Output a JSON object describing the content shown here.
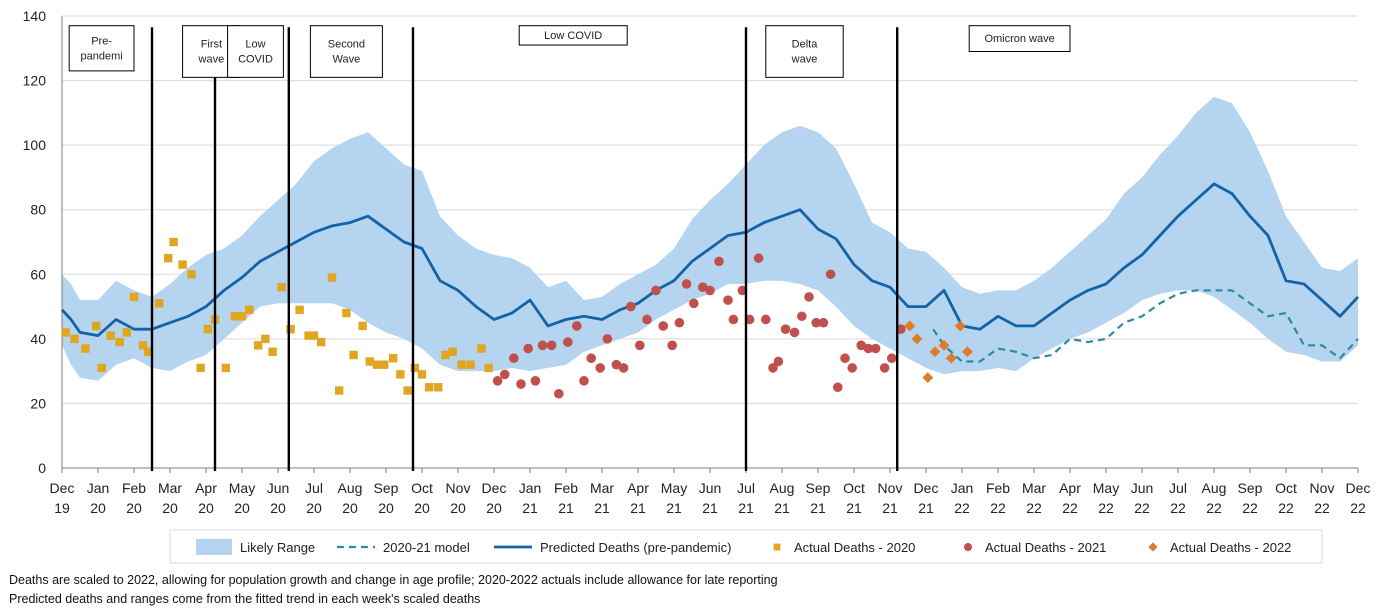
{
  "chart_data": {
    "type": "line",
    "y_axis": {
      "min": 0,
      "max": 140,
      "ticks": [
        0,
        20,
        40,
        60,
        80,
        100,
        120,
        140
      ]
    },
    "x_axis": {
      "min": 0,
      "max": 36,
      "unit": "months since Dec 2019",
      "ticks": [
        {
          "month": "Dec",
          "year": "19"
        },
        {
          "month": "Jan",
          "year": "20"
        },
        {
          "month": "Feb",
          "year": "20"
        },
        {
          "month": "Mar",
          "year": "20"
        },
        {
          "month": "Apr",
          "year": "20"
        },
        {
          "month": "May",
          "year": "20"
        },
        {
          "month": "Jun",
          "year": "20"
        },
        {
          "month": "Jul",
          "year": "20"
        },
        {
          "month": "Aug",
          "year": "20"
        },
        {
          "month": "Sep",
          "year": "20"
        },
        {
          "month": "Oct",
          "year": "20"
        },
        {
          "month": "Nov",
          "year": "20"
        },
        {
          "month": "Dec",
          "year": "20"
        },
        {
          "month": "Jan",
          "year": "21"
        },
        {
          "month": "Feb",
          "year": "21"
        },
        {
          "month": "Mar",
          "year": "21"
        },
        {
          "month": "Apr",
          "year": "21"
        },
        {
          "month": "May",
          "year": "21"
        },
        {
          "month": "Jun",
          "year": "21"
        },
        {
          "month": "Jul",
          "year": "21"
        },
        {
          "month": "Aug",
          "year": "21"
        },
        {
          "month": "Sep",
          "year": "21"
        },
        {
          "month": "Oct",
          "year": "21"
        },
        {
          "month": "Nov",
          "year": "21"
        },
        {
          "month": "Dec",
          "year": "21"
        },
        {
          "month": "Jan",
          "year": "22"
        },
        {
          "month": "Feb",
          "year": "22"
        },
        {
          "month": "Mar",
          "year": "22"
        },
        {
          "month": "Apr",
          "year": "22"
        },
        {
          "month": "May",
          "year": "22"
        },
        {
          "month": "Jun",
          "year": "22"
        },
        {
          "month": "Jul",
          "year": "22"
        },
        {
          "month": "Aug",
          "year": "22"
        },
        {
          "month": "Sep",
          "year": "22"
        },
        {
          "month": "Oct",
          "year": "22"
        },
        {
          "month": "Nov",
          "year": "22"
        },
        {
          "month": "Dec",
          "year": "22"
        }
      ]
    },
    "period_boundaries": [
      2.5,
      4.25,
      6.3,
      9.75,
      19.0,
      23.2
    ],
    "periods": [
      {
        "lines": [
          "Pre-",
          "pandemi"
        ],
        "x_from": 0.2,
        "x_to": 2.0,
        "y_top": 137,
        "y_bottom": 123
      },
      {
        "lines": [
          "First",
          "wave"
        ],
        "x_from": 3.35,
        "x_to": 4.95,
        "y_top": 137,
        "y_bottom": 121
      },
      {
        "lines": [
          "Low",
          "COVID"
        ],
        "x_from": 4.6,
        "x_to": 6.15,
        "y_top": 137,
        "y_bottom": 121
      },
      {
        "lines": [
          "Second",
          "Wave"
        ],
        "x_from": 6.9,
        "x_to": 8.9,
        "y_top": 137,
        "y_bottom": 121
      },
      {
        "lines": [
          "Low COVID"
        ],
        "x_from": 12.7,
        "x_to": 15.7,
        "y_top": 137,
        "y_bottom": 131
      },
      {
        "lines": [
          "Delta",
          "wave"
        ],
        "x_from": 19.55,
        "x_to": 21.7,
        "y_top": 137,
        "y_bottom": 121
      },
      {
        "lines": [
          "Omicron wave"
        ],
        "x_from": 25.2,
        "x_to": 28.0,
        "y_top": 137,
        "y_bottom": 129
      }
    ],
    "series": [
      {
        "name": "Likely Range",
        "type": "band",
        "color": "#b4d4f0",
        "x": [
          0,
          0.25,
          0.5,
          1,
          1.5,
          2,
          2.5,
          3,
          3.5,
          4,
          4.5,
          5,
          5.5,
          6,
          6.5,
          7,
          7.5,
          8,
          8.5,
          9,
          9.5,
          10,
          10.5,
          11,
          11.5,
          12,
          12.5,
          13,
          13.5,
          14,
          14.5,
          15,
          15.5,
          16,
          16.5,
          17,
          17.5,
          18,
          18.5,
          19,
          19.5,
          20,
          20.5,
          21,
          21.5,
          22,
          22.5,
          23,
          23.5,
          24,
          24.5,
          25,
          25.5,
          26,
          26.5,
          27,
          27.5,
          28,
          28.5,
          29,
          29.5,
          30,
          30.5,
          31,
          31.5,
          32,
          32.5,
          33,
          33.5,
          34,
          34.5,
          35,
          35.5,
          36
        ],
        "upper": [
          60,
          57,
          52,
          52,
          58,
          55,
          53,
          57,
          62,
          66,
          68,
          72,
          78,
          83,
          88,
          95,
          99,
          102,
          104,
          99,
          94,
          92,
          78,
          72,
          68,
          66,
          65,
          62,
          56,
          58,
          52,
          53,
          57,
          60,
          63,
          68,
          77,
          83,
          88,
          94,
          100,
          104,
          106,
          104,
          99,
          88,
          76,
          73,
          68,
          67,
          62,
          56,
          54,
          55,
          55,
          58,
          62,
          67,
          72,
          77,
          85,
          90,
          97,
          103,
          110,
          115,
          113,
          104,
          92,
          78,
          70,
          62,
          61,
          65
        ],
        "lower": [
          38,
          32,
          28,
          27,
          32,
          34,
          31,
          30,
          33,
          35,
          40,
          45,
          50,
          51,
          51,
          51,
          51,
          49,
          45,
          42,
          40,
          37,
          32,
          30,
          30,
          30,
          31,
          30,
          31,
          32,
          36,
          38,
          40,
          42,
          46,
          49,
          52,
          54,
          57,
          57,
          58,
          58,
          57,
          55,
          50,
          44,
          40,
          37,
          34,
          31,
          29,
          30,
          30,
          31,
          30,
          34,
          37,
          40,
          42,
          45,
          48,
          52,
          54,
          55,
          55,
          53,
          49,
          45,
          40,
          36,
          35,
          33,
          33,
          38
        ]
      },
      {
        "name": "2020-21 model",
        "type": "line",
        "style": "dashed",
        "color": "#2e8a9e",
        "x": [
          24.2,
          24.5,
          25,
          25.5,
          26,
          26.5,
          27,
          27.5,
          28,
          28.5,
          29,
          29.5,
          30,
          30.5,
          31,
          31.5,
          32,
          32.5,
          33,
          33.5,
          34,
          34.5,
          35,
          35.5,
          36
        ],
        "y": [
          43,
          38,
          33,
          33,
          37,
          36,
          34,
          35,
          40,
          39,
          40,
          45,
          47,
          51,
          54,
          55,
          55,
          55,
          51,
          47,
          48,
          38,
          38,
          34,
          40
        ]
      },
      {
        "name": "Predicted Deaths (pre-pandemic)",
        "type": "line",
        "style": "solid",
        "color": "#1462a8",
        "x": [
          0,
          0.25,
          0.5,
          1,
          1.5,
          2,
          2.5,
          3,
          3.5,
          4,
          4.5,
          5,
          5.5,
          6,
          6.5,
          7,
          7.5,
          8,
          8.5,
          9,
          9.5,
          10,
          10.5,
          11,
          11.5,
          12,
          12.5,
          13,
          13.5,
          14,
          14.5,
          15,
          15.5,
          16,
          16.5,
          17,
          17.5,
          18,
          18.5,
          19,
          19.5,
          20,
          20.5,
          21,
          21.5,
          22,
          22.5,
          23,
          23.5,
          24,
          24.5,
          25,
          25.5,
          26,
          26.5,
          27,
          27.5,
          28,
          28.5,
          29,
          29.5,
          30,
          30.5,
          31,
          31.5,
          32,
          32.5,
          33,
          33.5,
          34,
          34.5,
          35,
          35.5,
          36
        ],
        "y": [
          49,
          46,
          42,
          41,
          46,
          43,
          43,
          45,
          47,
          50,
          55,
          59,
          64,
          67,
          70,
          73,
          75,
          76,
          78,
          74,
          70,
          68,
          58,
          55,
          50,
          46,
          48,
          52,
          44,
          46,
          47,
          46,
          49,
          51,
          55,
          58,
          64,
          68,
          72,
          73,
          76,
          78,
          80,
          74,
          71,
          63,
          58,
          56,
          50,
          50,
          55,
          44,
          43,
          47,
          44,
          44,
          48,
          52,
          55,
          57,
          62,
          66,
          72,
          78,
          83,
          88,
          85,
          78,
          72,
          58,
          57,
          52,
          47,
          53
        ]
      },
      {
        "name": "Actual Deaths - 2020",
        "type": "scatter",
        "marker": "square",
        "color": "#e0a61f",
        "points": [
          [
            0.1,
            42
          ],
          [
            0.35,
            40
          ],
          [
            0.65,
            37
          ],
          [
            0.95,
            44
          ],
          [
            1.1,
            31
          ],
          [
            1.35,
            41
          ],
          [
            1.6,
            39
          ],
          [
            1.8,
            42
          ],
          [
            2,
            53
          ],
          [
            2.25,
            38
          ],
          [
            2.4,
            36
          ],
          [
            2.7,
            51
          ],
          [
            2.95,
            65
          ],
          [
            3.1,
            70
          ],
          [
            3.35,
            63
          ],
          [
            3.6,
            60
          ],
          [
            3.85,
            31
          ],
          [
            4.05,
            43
          ],
          [
            4.25,
            46
          ],
          [
            4.55,
            31
          ],
          [
            4.8,
            47
          ],
          [
            5,
            47
          ],
          [
            5.2,
            49
          ],
          [
            5.45,
            38
          ],
          [
            5.65,
            40
          ],
          [
            5.85,
            36
          ],
          [
            6.1,
            56
          ],
          [
            6.35,
            43
          ],
          [
            6.6,
            49
          ],
          [
            6.85,
            41
          ],
          [
            7,
            41
          ],
          [
            7.2,
            39
          ],
          [
            7.5,
            59
          ],
          [
            7.7,
            24
          ],
          [
            7.9,
            48
          ],
          [
            8.1,
            35
          ],
          [
            8.35,
            44
          ],
          [
            8.55,
            33
          ],
          [
            8.75,
            32
          ],
          [
            8.95,
            32
          ],
          [
            9.2,
            34
          ],
          [
            9.4,
            29
          ],
          [
            9.6,
            24
          ],
          [
            9.8,
            31
          ],
          [
            10,
            29
          ],
          [
            10.2,
            25
          ],
          [
            10.45,
            25
          ],
          [
            10.65,
            35
          ],
          [
            10.85,
            36
          ],
          [
            11.1,
            32
          ],
          [
            11.35,
            32
          ],
          [
            11.65,
            37
          ],
          [
            11.85,
            31
          ]
        ]
      },
      {
        "name": "Actual Deaths - 2021",
        "type": "scatter",
        "marker": "circle",
        "color": "#c0504d",
        "points": [
          [
            12.1,
            27
          ],
          [
            12.3,
            29
          ],
          [
            12.55,
            34
          ],
          [
            12.75,
            26
          ],
          [
            12.95,
            37
          ],
          [
            13.15,
            27
          ],
          [
            13.35,
            38
          ],
          [
            13.6,
            38
          ],
          [
            13.8,
            23
          ],
          [
            14.05,
            39
          ],
          [
            14.3,
            44
          ],
          [
            14.5,
            27
          ],
          [
            14.7,
            34
          ],
          [
            14.95,
            31
          ],
          [
            15.15,
            40
          ],
          [
            15.4,
            32
          ],
          [
            15.6,
            31
          ],
          [
            15.8,
            50
          ],
          [
            16.05,
            38
          ],
          [
            16.25,
            46
          ],
          [
            16.5,
            55
          ],
          [
            16.7,
            44
          ],
          [
            16.95,
            38
          ],
          [
            17.15,
            45
          ],
          [
            17.35,
            57
          ],
          [
            17.55,
            51
          ],
          [
            17.8,
            56
          ],
          [
            18,
            55
          ],
          [
            18.25,
            64
          ],
          [
            18.5,
            52
          ],
          [
            18.65,
            46
          ],
          [
            18.9,
            55
          ],
          [
            19.1,
            46
          ],
          [
            19.35,
            65
          ],
          [
            19.55,
            46
          ],
          [
            19.75,
            31
          ],
          [
            19.9,
            33
          ],
          [
            20.1,
            43
          ],
          [
            20.35,
            42
          ],
          [
            20.55,
            47
          ],
          [
            20.75,
            53
          ],
          [
            20.95,
            45
          ],
          [
            21.15,
            45
          ],
          [
            21.35,
            60
          ],
          [
            21.55,
            25
          ],
          [
            21.75,
            34
          ],
          [
            21.95,
            31
          ],
          [
            22.2,
            38
          ],
          [
            22.4,
            37
          ],
          [
            22.6,
            37
          ],
          [
            22.85,
            31
          ],
          [
            23.05,
            34
          ],
          [
            23.3,
            43
          ]
        ]
      },
      {
        "name": "Actual Deaths - 2022",
        "type": "scatter",
        "marker": "diamond",
        "color": "#e07b2a",
        "points": [
          [
            23.55,
            44
          ],
          [
            23.75,
            40
          ],
          [
            24.05,
            28
          ],
          [
            24.25,
            36
          ],
          [
            24.5,
            38
          ],
          [
            24.7,
            34
          ],
          [
            24.95,
            44
          ],
          [
            25.15,
            36
          ]
        ]
      }
    ],
    "legend": {
      "placement": "bottom",
      "items": [
        {
          "label": "Likely Range",
          "kind": "band",
          "color": "#b4d4f0"
        },
        {
          "label": "2020-21 model",
          "kind": "dashed",
          "color": "#2e8a9e"
        },
        {
          "label": "Predicted Deaths (pre-pandemic)",
          "kind": "line",
          "color": "#1462a8"
        },
        {
          "label": "Actual Deaths - 2020",
          "kind": "square",
          "color": "#e0a61f"
        },
        {
          "label": "Actual Deaths - 2021",
          "kind": "circle",
          "color": "#c0504d"
        },
        {
          "label": "Actual Deaths - 2022",
          "kind": "diamond",
          "color": "#e07b2a"
        }
      ]
    },
    "grid": true
  },
  "footnotes": [
    "Deaths are scaled to 2022,  allowing for population growth and change in age profile; 2020-2022  actuals include allowance for late reporting",
    "Predicted deaths and ranges come from the fitted trend in each week's scaled deaths"
  ]
}
